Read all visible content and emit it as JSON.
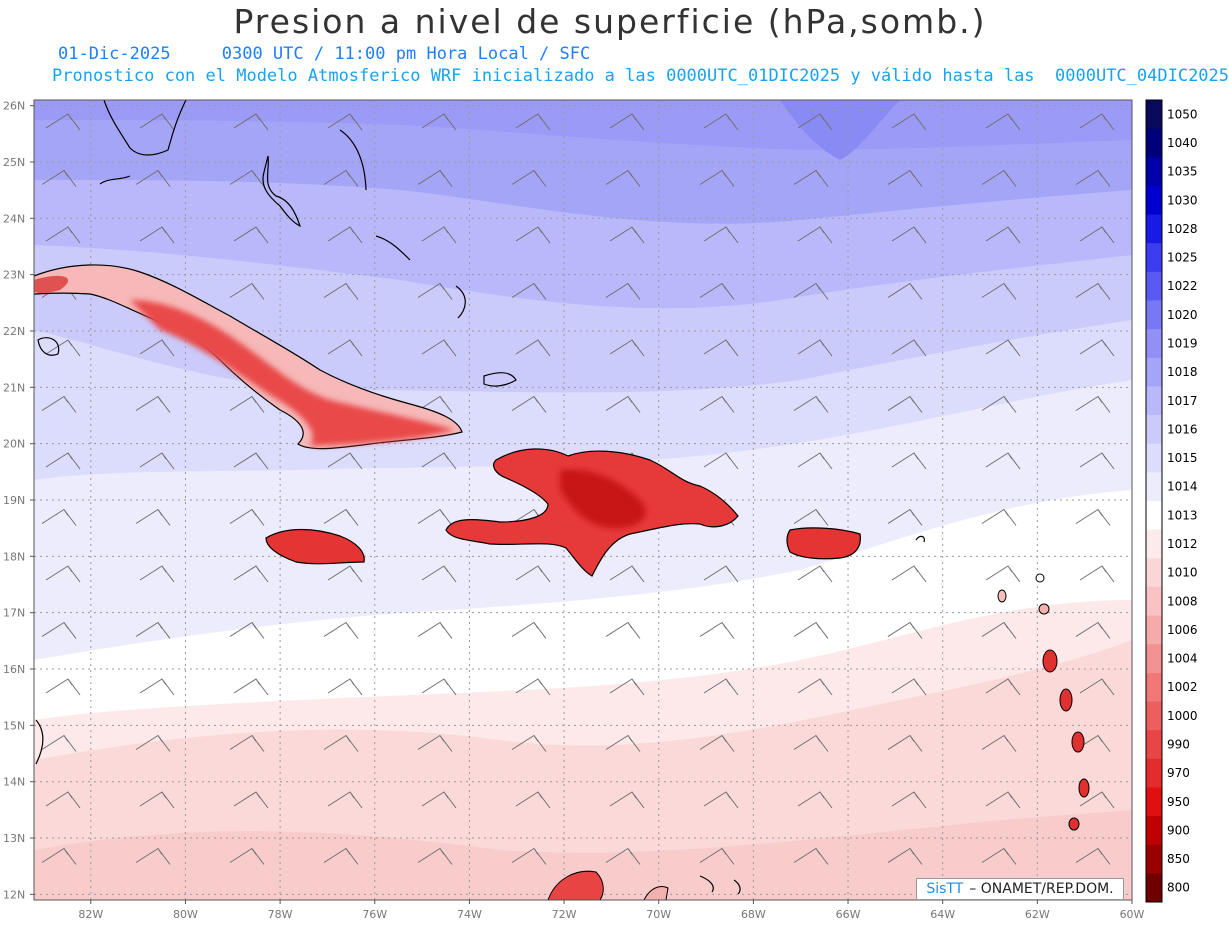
{
  "header": {
    "title": "Presion a nivel de superficie (hPa,somb.)",
    "subtitle_line1": "01-Dic-2025     0300 UTC / 11:00 pm Hora Local / SFC",
    "subtitle_line2": "Pronostico con el Modelo Atmosferico WRF inicializado a las 0000UTC_01DIC2025 y válido hasta las  0000UTC_04DIC2025"
  },
  "map": {
    "lat_labels": [
      "26N",
      "25N",
      "24N",
      "23N",
      "22N",
      "21N",
      "20N",
      "19N",
      "18N",
      "17N",
      "16N",
      "15N",
      "14N",
      "13N",
      "12N"
    ],
    "lon_labels": [
      "82W",
      "80W",
      "78W",
      "76W",
      "74W",
      "72W",
      "70W",
      "68W",
      "66W",
      "64W",
      "62W",
      "60W"
    ]
  },
  "colorbar": {
    "levels": [
      "1050",
      "1040",
      "1035",
      "1030",
      "1028",
      "1025",
      "1022",
      "1020",
      "1019",
      "1018",
      "1017",
      "1016",
      "1015",
      "1014",
      "1013",
      "1012",
      "1010",
      "1008",
      "1006",
      "1004",
      "1002",
      "1000",
      "990",
      "970",
      "950",
      "900",
      "850",
      "800"
    ],
    "colors": [
      "#0a0a5a",
      "#00007a",
      "#0000aa",
      "#0000d0",
      "#1a1ae6",
      "#3c3cf0",
      "#5a5af2",
      "#7878f4",
      "#9090f6",
      "#a5a5f8",
      "#b8b8fa",
      "#cbcbfb",
      "#dcdcfc",
      "#ececfd",
      "#ffffff",
      "#fdeaea",
      "#fbd6d6",
      "#f9c3c3",
      "#f6aaaa",
      "#f39292",
      "#f07878",
      "#ec5f5f",
      "#e84646",
      "#e42c2c",
      "#e01010",
      "#c00000",
      "#9a0000",
      "#700000"
    ]
  },
  "credit": {
    "logo": "SisTT",
    "org": "– ONAMET/REP.DOM."
  }
}
